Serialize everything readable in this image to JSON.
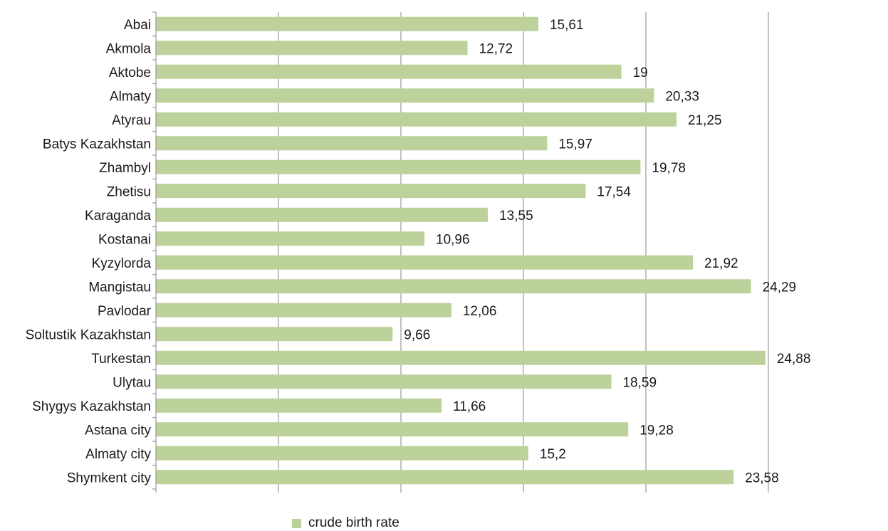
{
  "chart_data": {
    "type": "bar",
    "orientation": "horizontal",
    "categories": [
      "Abai",
      "Akmola",
      "Aktobe",
      "Almaty",
      "Atyrau",
      "Batys Kazakhstan",
      "Zhambyl",
      "Zhetisu",
      "Karaganda",
      "Kostanai",
      "Kyzylorda",
      "Mangistau",
      "Pavlodar",
      "Soltustik Kazakhstan",
      "Turkestan",
      "Ulytau",
      "Shygys Kazakhstan",
      "Astana city",
      "Almaty city",
      "Shymkent city"
    ],
    "series": [
      {
        "name": "crude birth rate",
        "values": [
          15.61,
          12.72,
          19,
          20.33,
          21.25,
          15.97,
          19.78,
          17.54,
          13.55,
          10.96,
          21.92,
          24.29,
          12.06,
          9.66,
          24.88,
          18.59,
          11.66,
          19.28,
          15.2,
          23.58
        ],
        "value_labels": [
          "15,61",
          "12,72",
          "19",
          "20,33",
          "21,25",
          "15,97",
          "19,78",
          "17,54",
          "13,55",
          "10,96",
          "21,92",
          "24,29",
          "12,06",
          "9,66",
          "24,88",
          "18,59",
          "11,66",
          "19,28",
          "15,2",
          "23,58"
        ]
      }
    ],
    "xlim": [
      0,
      25
    ],
    "grid": true,
    "legend_placement": "bottom",
    "bar_color": "#bdd19b",
    "grid_color": "#999999"
  },
  "legend": {
    "label": "crude birth rate"
  }
}
